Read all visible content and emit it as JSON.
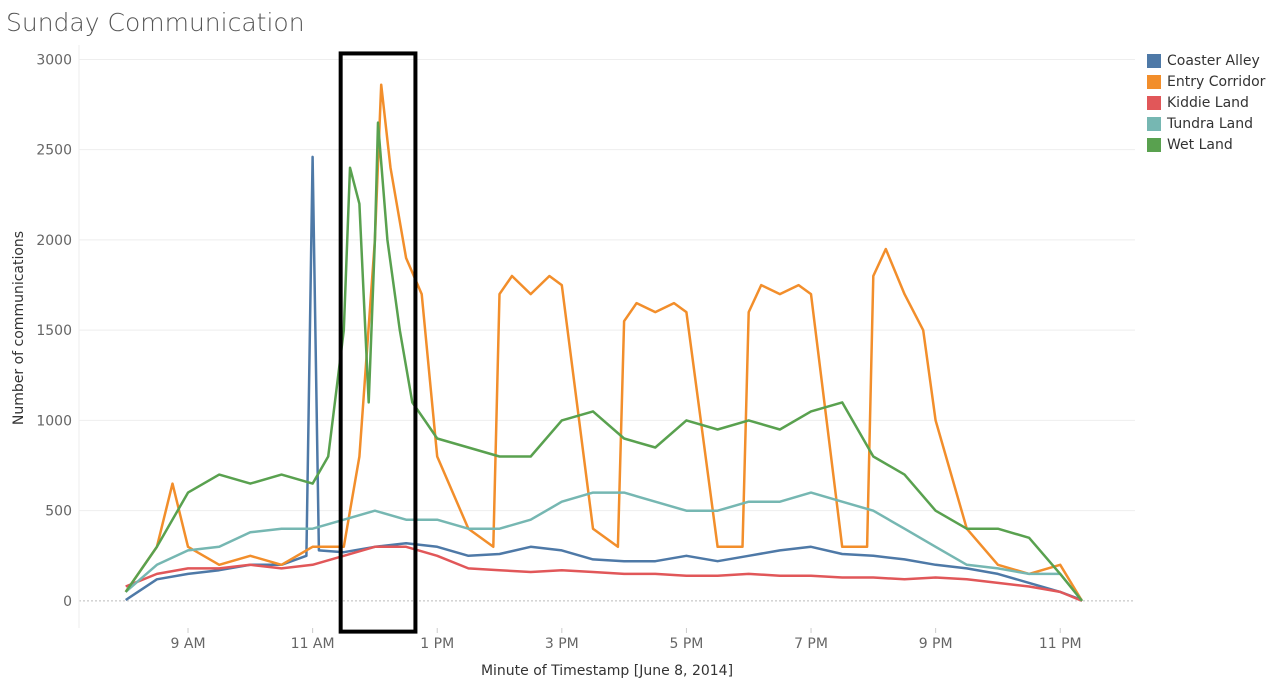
{
  "chart_data": {
    "type": "line",
    "title": "Sunday Communication",
    "xlabel": "Minute of Timestamp [June 8, 2014]",
    "ylabel": "Number of communications",
    "ylim": [
      -150,
      3080
    ],
    "yticks": [
      0,
      500,
      1000,
      1500,
      2000,
      2500,
      3000
    ],
    "xlim": [
      7.25,
      24.2
    ],
    "xticks": [
      {
        "hour": 9,
        "label": "9 AM"
      },
      {
        "hour": 11,
        "label": "11 AM"
      },
      {
        "hour": 13,
        "label": "1 PM"
      },
      {
        "hour": 15,
        "label": "3 PM"
      },
      {
        "hour": 17,
        "label": "5 PM"
      },
      {
        "hour": 19,
        "label": "7 PM"
      },
      {
        "hour": 21,
        "label": "9 PM"
      },
      {
        "hour": 23,
        "label": "11 PM"
      }
    ],
    "grid": "horizontal",
    "legend_position": "right",
    "highlight_box": {
      "x_start_hour": 11.45,
      "x_end_hour": 12.65,
      "y_top": 3000,
      "y_bottom": -170
    },
    "series": [
      {
        "name": "Coaster Alley",
        "color": "#4e79a7",
        "x": [
          8,
          8.5,
          9,
          9.5,
          10,
          10.5,
          10.9,
          11,
          11.1,
          11.5,
          12,
          12.5,
          13,
          13.5,
          14,
          14.5,
          15,
          15.5,
          16,
          16.5,
          17,
          17.5,
          18,
          18.5,
          19,
          19.5,
          20,
          20.5,
          21,
          21.5,
          22,
          22.5,
          23,
          23.35
        ],
        "values": [
          5,
          120,
          150,
          170,
          200,
          200,
          250,
          2460,
          280,
          270,
          300,
          320,
          300,
          250,
          260,
          300,
          280,
          230,
          220,
          220,
          250,
          220,
          250,
          280,
          300,
          260,
          250,
          230,
          200,
          180,
          150,
          100,
          50,
          5
        ]
      },
      {
        "name": "Entry Corridor",
        "color": "#f28e2b",
        "x": [
          8,
          8.5,
          8.75,
          9,
          9.5,
          10,
          10.5,
          11,
          11.5,
          11.75,
          12,
          12.1,
          12.25,
          12.5,
          12.75,
          13,
          13.5,
          13.9,
          14,
          14.2,
          14.5,
          14.8,
          15,
          15.5,
          15.9,
          16,
          16.2,
          16.5,
          16.8,
          17,
          17.5,
          17.9,
          18,
          18.2,
          18.5,
          18.8,
          19,
          19.5,
          19.9,
          20,
          20.2,
          20.5,
          20.8,
          21,
          21.5,
          22,
          22.5,
          23,
          23.35
        ],
        "values": [
          50,
          300,
          650,
          300,
          200,
          250,
          200,
          300,
          300,
          800,
          2000,
          2860,
          2400,
          1900,
          1700,
          800,
          400,
          300,
          1700,
          1800,
          1700,
          1800,
          1750,
          400,
          300,
          1550,
          1650,
          1600,
          1650,
          1600,
          300,
          300,
          1600,
          1750,
          1700,
          1750,
          1700,
          300,
          300,
          1800,
          1950,
          1700,
          1500,
          1000,
          400,
          200,
          150,
          200,
          0
        ]
      },
      {
        "name": "Kiddie Land",
        "color": "#e15759",
        "x": [
          8,
          8.5,
          9,
          9.5,
          10,
          10.5,
          11,
          11.5,
          12,
          12.5,
          13,
          13.5,
          14,
          14.5,
          15,
          15.5,
          16,
          16.5,
          17,
          17.5,
          18,
          18.5,
          19,
          19.5,
          20,
          20.5,
          21,
          21.5,
          22,
          22.5,
          23,
          23.35
        ],
        "values": [
          80,
          150,
          180,
          180,
          200,
          180,
          200,
          250,
          300,
          300,
          250,
          180,
          170,
          160,
          170,
          160,
          150,
          150,
          140,
          140,
          150,
          140,
          140,
          130,
          130,
          120,
          130,
          120,
          100,
          80,
          50,
          0
        ]
      },
      {
        "name": "Tundra Land",
        "color": "#76b7b2",
        "x": [
          8,
          8.5,
          9,
          9.5,
          10,
          10.5,
          11,
          11.5,
          12,
          12.5,
          13,
          13.5,
          14,
          14.5,
          15,
          15.5,
          16,
          16.5,
          17,
          17.5,
          18,
          18.5,
          19,
          19.5,
          20,
          20.5,
          21,
          21.5,
          22,
          22.5,
          23,
          23.35
        ],
        "values": [
          50,
          200,
          280,
          300,
          380,
          400,
          400,
          450,
          500,
          450,
          450,
          400,
          400,
          450,
          550,
          600,
          600,
          550,
          500,
          500,
          550,
          550,
          600,
          550,
          500,
          400,
          300,
          200,
          180,
          150,
          150,
          0
        ]
      },
      {
        "name": "Wet Land",
        "color": "#59a14f",
        "x": [
          8,
          8.5,
          9,
          9.5,
          10,
          10.5,
          11,
          11.25,
          11.5,
          11.6,
          11.75,
          11.9,
          12,
          12.05,
          12.2,
          12.4,
          12.6,
          12.8,
          13,
          13.5,
          14,
          14.5,
          15,
          15.5,
          16,
          16.5,
          17,
          17.5,
          18,
          18.5,
          19,
          19.5,
          20,
          20.5,
          21,
          21.5,
          22,
          22.5,
          23,
          23.35
        ],
        "values": [
          50,
          300,
          600,
          700,
          650,
          700,
          650,
          800,
          1500,
          2400,
          2200,
          1100,
          2000,
          2650,
          2000,
          1500,
          1100,
          1000,
          900,
          850,
          800,
          800,
          1000,
          1050,
          900,
          850,
          1000,
          950,
          1000,
          950,
          1050,
          1100,
          800,
          700,
          500,
          400,
          400,
          350,
          150,
          0
        ]
      }
    ]
  }
}
